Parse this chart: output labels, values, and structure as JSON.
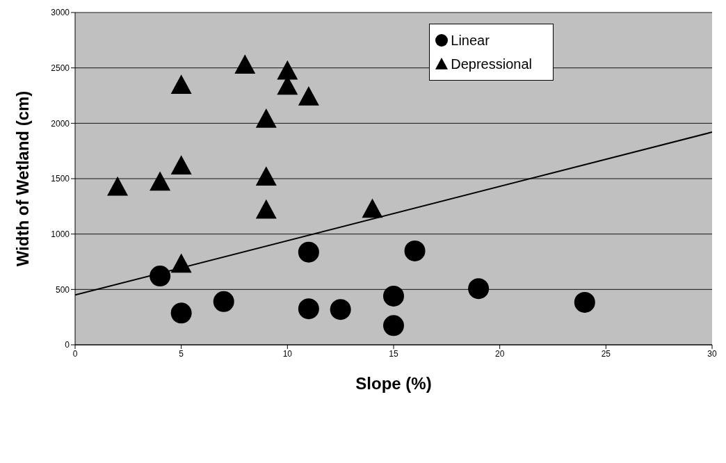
{
  "chart_data": {
    "type": "scatter",
    "xlabel": "Slope (%)",
    "ylabel": "Width of Wetland (cm)",
    "xlim": [
      0,
      30
    ],
    "xticks": [
      0,
      5,
      10,
      15,
      20,
      25,
      30
    ],
    "ylim": [
      0,
      3000
    ],
    "yticks": [
      0,
      500,
      1000,
      1500,
      2000,
      2500,
      3000
    ],
    "grid": "y",
    "legend": "top right",
    "series": [
      {
        "name": "Linear",
        "color": "#000000",
        "marker": "circle",
        "x": [
          4,
          5,
          7,
          11,
          11,
          12.5,
          15,
          15,
          16,
          19,
          24
        ],
        "values": [
          621,
          287,
          390,
          837,
          325,
          319,
          440,
          174,
          848,
          507,
          383
        ]
      },
      {
        "name": "Depressional",
        "color": "#000000",
        "marker": "triangle",
        "x": [
          2,
          4,
          5,
          5,
          5,
          8,
          9,
          9,
          9,
          10,
          10,
          11,
          14
        ],
        "values": [
          1426,
          1472,
          1618,
          2346,
          731,
          2528,
          2040,
          1518,
          1219,
          2474,
          2338,
          2241,
          1227
        ]
      },
      {
        "type": "line",
        "color": "#000000",
        "marker": "none",
        "x": [
          0,
          30
        ],
        "values": [
          450,
          1920
        ]
      }
    ]
  }
}
